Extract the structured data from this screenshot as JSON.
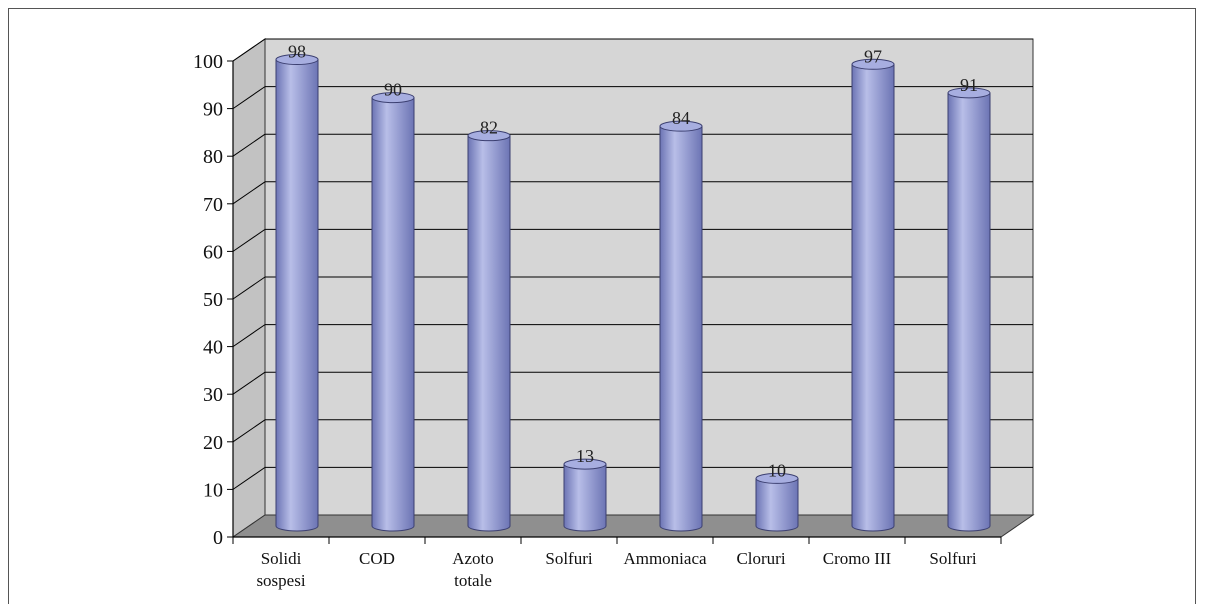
{
  "chart_data": {
    "type": "bar",
    "style": "3d-cylinder",
    "categories": [
      [
        "Solidi",
        "sospesi"
      ],
      [
        "COD"
      ],
      [
        "Azoto",
        "totale"
      ],
      [
        "Solfuri"
      ],
      [
        "Ammoniaca"
      ],
      [
        "Cloruri"
      ],
      [
        "Cromo III"
      ],
      [
        "Solfuri"
      ]
    ],
    "values": [
      98,
      90,
      82,
      13,
      84,
      10,
      97,
      91
    ],
    "title": "",
    "xlabel": "",
    "ylabel": "",
    "ylim": [
      0,
      100
    ],
    "yticks": [
      0,
      10,
      20,
      30,
      40,
      50,
      60,
      70,
      80,
      90,
      100
    ],
    "grid": true,
    "legend": "none",
    "colors": {
      "bar_body": "#8f97d0",
      "bar_light": "#b8bee8",
      "bar_dark": "#6c74b4",
      "bar_top": "#a7aee0",
      "wall": "#d6d6d6",
      "floor": "#8f8f8f",
      "gridline": "#000000"
    }
  }
}
